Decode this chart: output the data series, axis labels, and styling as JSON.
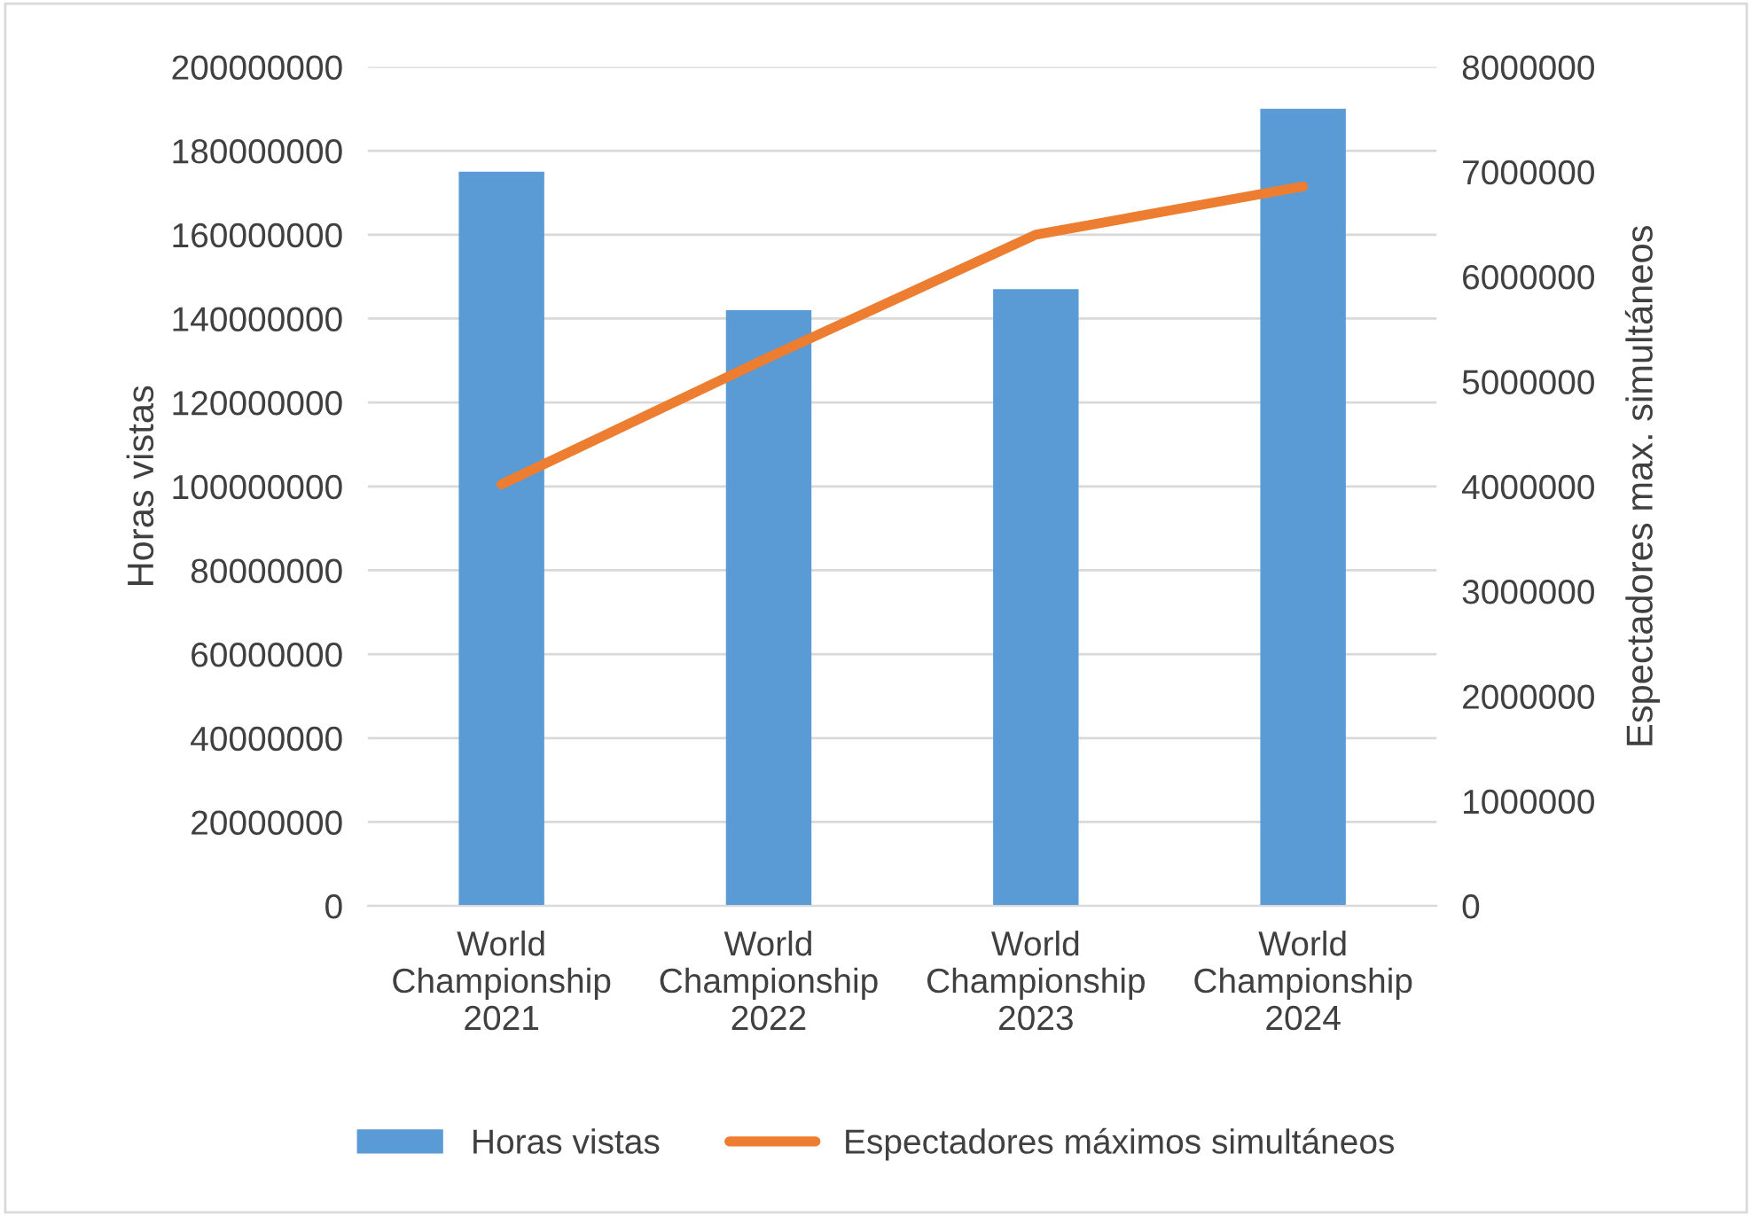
{
  "chart_data": {
    "type": "bar",
    "categories": [
      "World\nChampionship\n2021",
      "World\nChampionship\n2022",
      "World\nChampionship\n2023",
      "World\nChampionship\n2024"
    ],
    "series": [
      {
        "name": "Horas vistas",
        "color": "#5b9bd5",
        "values": [
          175000000,
          142000000,
          147000000,
          190000000
        ]
      },
      {
        "name": "Espectadores máximos simultáneos",
        "type": "line",
        "axis": "y2",
        "color": "#ed7d31",
        "values": [
          4020000,
          5230000,
          6400000,
          6860000
        ]
      }
    ],
    "ylabel": "Horas vistas",
    "y2label": "Espectadores max. simultáneos",
    "ylim": [
      0,
      200000000
    ],
    "yticks": [
      0,
      20000000,
      40000000,
      60000000,
      80000000,
      100000000,
      120000000,
      140000000,
      160000000,
      180000000,
      200000000
    ],
    "y2lim": [
      0,
      8000000
    ],
    "y2ticks": [
      0,
      1000000,
      2000000,
      3000000,
      4000000,
      5000000,
      6000000,
      7000000,
      8000000
    ],
    "grid": "y",
    "legend": "bottom",
    "marker": "none",
    "line_style": "solid"
  }
}
